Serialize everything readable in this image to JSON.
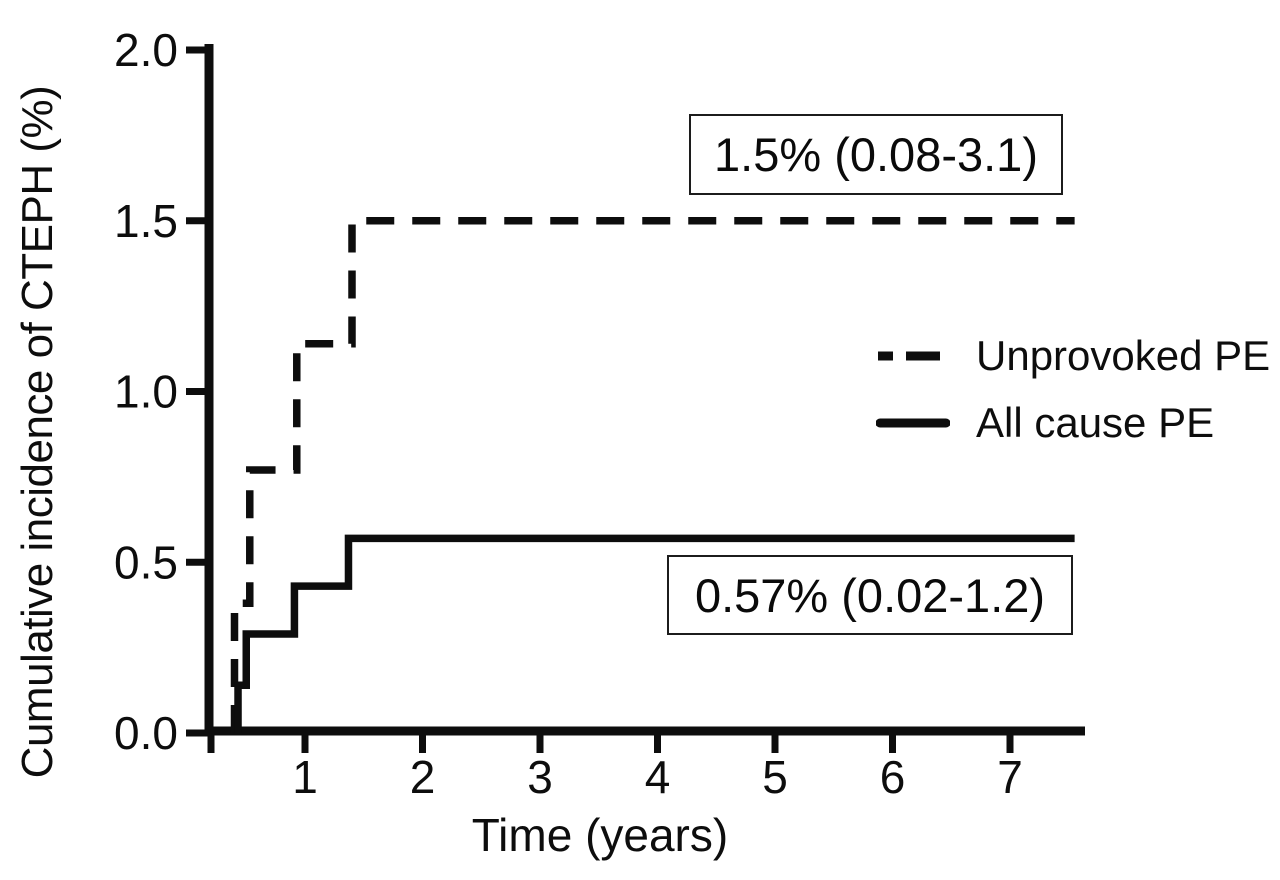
{
  "chart_data": {
    "type": "line",
    "subtype": "step-cumulative-incidence",
    "title": "",
    "xlabel": "Time (years)",
    "ylabel": "Cumulative incidence of CTEPH (%)",
    "xlim": [
      0.2,
      7.65
    ],
    "ylim": [
      0.0,
      2.0
    ],
    "grid": false,
    "x_ticks": [
      {
        "value": 1,
        "label": "1"
      },
      {
        "value": 2,
        "label": "2"
      },
      {
        "value": 3,
        "label": "3"
      },
      {
        "value": 4,
        "label": "4"
      },
      {
        "value": 5,
        "label": "5"
      },
      {
        "value": 6,
        "label": "6"
      },
      {
        "value": 7,
        "label": "7"
      }
    ],
    "y_ticks": [
      {
        "value": 2.0,
        "label": "2.0"
      },
      {
        "value": 1.5,
        "label": "1.5"
      },
      {
        "value": 1.0,
        "label": "1.0"
      },
      {
        "value": 0.5,
        "label": "0.5"
      },
      {
        "value": 0.0,
        "label": "0.0"
      }
    ],
    "legend_position": "right-middle",
    "line_color": "#0d0d0d",
    "series": [
      {
        "name": "Unprovoked PE",
        "line_style": "dashed",
        "color": "#0d0d0d",
        "start_value": 0.0,
        "steps": [
          {
            "t": 0.4,
            "value": 0.38
          },
          {
            "t": 0.53,
            "value": 0.77
          },
          {
            "t": 0.93,
            "value": 1.14
          },
          {
            "t": 1.4,
            "value": 1.5
          }
        ],
        "end_t": 7.55,
        "final_value": 1.5
      },
      {
        "name": "All cause PE",
        "line_style": "solid",
        "color": "#0d0d0d",
        "start_value": 0.0,
        "steps": [
          {
            "t": 0.43,
            "value": 0.14
          },
          {
            "t": 0.5,
            "value": 0.29
          },
          {
            "t": 0.91,
            "value": 0.43
          },
          {
            "t": 1.37,
            "value": 0.57
          }
        ],
        "end_t": 7.55,
        "final_value": 0.57
      }
    ],
    "annotations": [
      {
        "text": "1.5% (0.08-3.1)",
        "refers_to": "Unprovoked PE"
      },
      {
        "text": "0.57% (0.02-1.2)",
        "refers_to": "All cause PE"
      }
    ]
  }
}
